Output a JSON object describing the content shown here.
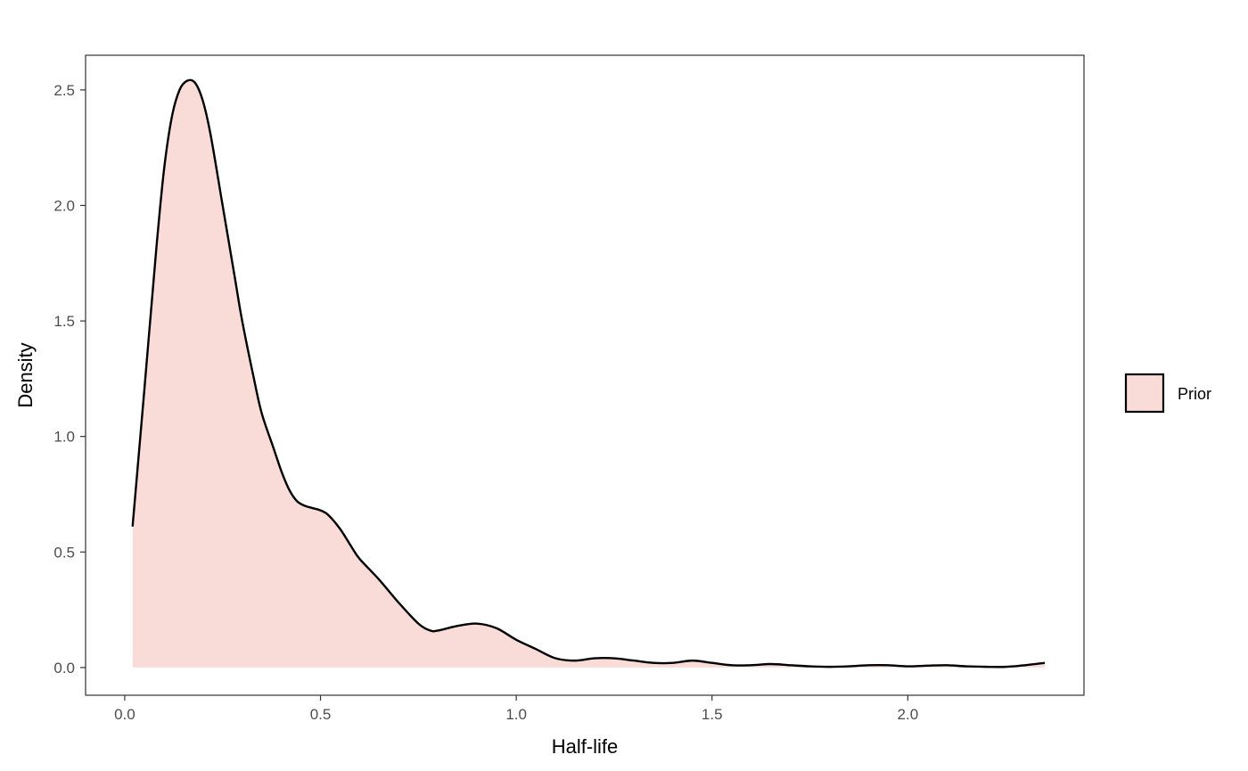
{
  "chart_data": {
    "type": "area",
    "xlabel": "Half-life",
    "ylabel": "Density",
    "xlim": [
      -0.1,
      2.45
    ],
    "ylim": [
      -0.12,
      2.65
    ],
    "x_ticks": [
      0.0,
      0.5,
      1.0,
      1.5,
      2.0
    ],
    "x_tick_labels": [
      "0.0",
      "0.5",
      "1.0",
      "1.5",
      "2.0"
    ],
    "y_ticks": [
      0.0,
      0.5,
      1.0,
      1.5,
      2.0,
      2.5
    ],
    "y_tick_labels": [
      "0.0",
      "0.5",
      "1.0",
      "1.5",
      "2.0",
      "2.5"
    ],
    "grid": false,
    "legend": {
      "placement": "right",
      "entries": [
        {
          "label": "Prior",
          "fill": "#f9dbd8",
          "stroke": "#000000"
        }
      ]
    },
    "series": [
      {
        "name": "Prior",
        "fill": "#f9dbd8",
        "line": "#000000",
        "x": [
          0.02,
          0.05,
          0.08,
          0.1,
          0.12,
          0.14,
          0.16,
          0.18,
          0.2,
          0.22,
          0.25,
          0.28,
          0.3,
          0.33,
          0.35,
          0.38,
          0.4,
          0.42,
          0.44,
          0.46,
          0.48,
          0.5,
          0.52,
          0.55,
          0.58,
          0.6,
          0.65,
          0.7,
          0.75,
          0.78,
          0.8,
          0.85,
          0.9,
          0.95,
          1.0,
          1.05,
          1.1,
          1.15,
          1.2,
          1.25,
          1.3,
          1.35,
          1.4,
          1.45,
          1.5,
          1.55,
          1.6,
          1.65,
          1.7,
          1.75,
          1.8,
          1.85,
          1.9,
          1.95,
          2.0,
          2.05,
          2.1,
          2.15,
          2.2,
          2.25,
          2.3,
          2.35
        ],
        "y": [
          0.61,
          1.2,
          1.8,
          2.15,
          2.38,
          2.5,
          2.54,
          2.53,
          2.45,
          2.3,
          2.0,
          1.7,
          1.5,
          1.25,
          1.1,
          0.95,
          0.85,
          0.77,
          0.72,
          0.7,
          0.69,
          0.68,
          0.66,
          0.6,
          0.52,
          0.47,
          0.38,
          0.28,
          0.19,
          0.16,
          0.16,
          0.18,
          0.19,
          0.17,
          0.12,
          0.08,
          0.04,
          0.03,
          0.04,
          0.04,
          0.03,
          0.02,
          0.02,
          0.03,
          0.02,
          0.01,
          0.01,
          0.015,
          0.01,
          0.005,
          0.003,
          0.005,
          0.01,
          0.01,
          0.005,
          0.008,
          0.01,
          0.005,
          0.003,
          0.003,
          0.01,
          0.02
        ]
      }
    ]
  }
}
